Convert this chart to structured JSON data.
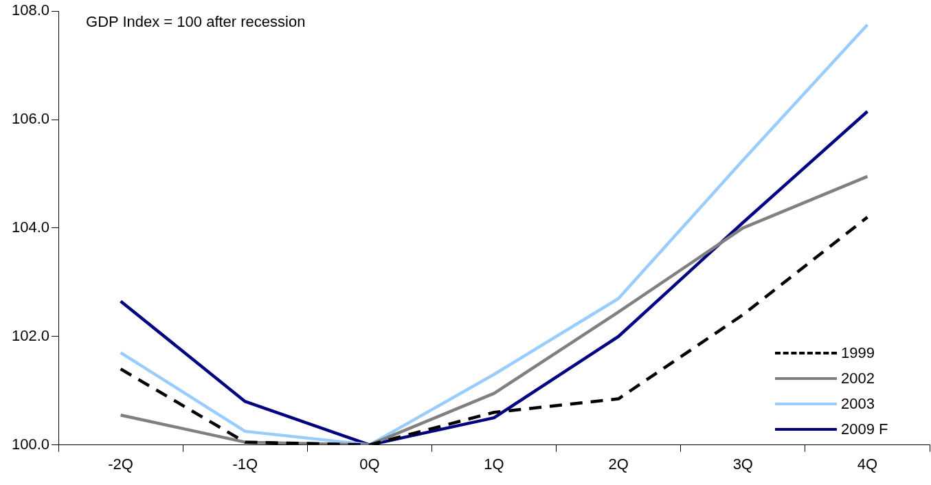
{
  "chart_data": {
    "type": "line",
    "categories": [
      "-2Q",
      "-1Q",
      "0Q",
      "1Q",
      "2Q",
      "3Q",
      "4Q"
    ],
    "series": [
      {
        "name": "1999",
        "color": "#000000",
        "line_style": "dashed",
        "values": [
          101.4,
          100.05,
          100,
          100.6,
          100.85,
          102.4,
          104.2
        ]
      },
      {
        "name": "2002",
        "color": "#808080",
        "values": [
          100.55,
          100.05,
          100,
          100.95,
          102.45,
          104.0,
          104.95
        ]
      },
      {
        "name": "2003",
        "color": "#99ccff",
        "values": [
          101.7,
          100.25,
          100,
          101.3,
          102.7,
          105.25,
          107.75
        ]
      },
      {
        "name": "2009 F",
        "color": "#000080",
        "values": [
          102.65,
          100.8,
          100,
          100.5,
          102.0,
          104.1,
          106.15
        ]
      }
    ],
    "ylim": [
      100,
      108
    ],
    "yticks": [
      {
        "value": 100,
        "label": "100.0"
      },
      {
        "value": 102,
        "label": "102.0"
      },
      {
        "value": 104,
        "label": "104.0"
      },
      {
        "value": 106,
        "label": "106.0"
      },
      {
        "value": 108,
        "label": "108.0"
      }
    ],
    "annotations": [
      "GDP Index = 100 after recession"
    ],
    "legend": "bottom right",
    "grid": false,
    "marker": "none",
    "line_style": "solid"
  }
}
